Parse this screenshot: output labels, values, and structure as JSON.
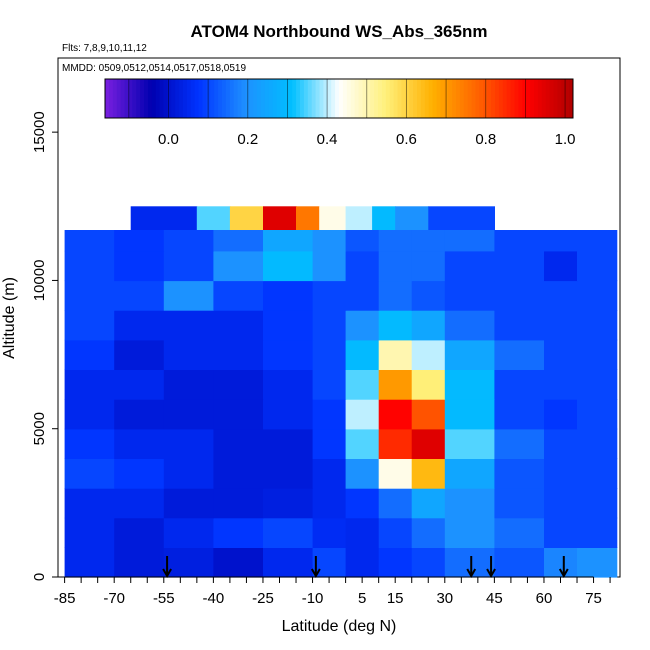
{
  "chart_data": {
    "type": "heatmap",
    "title": "ATOM4 Northbound WS_Abs_365nm",
    "flights_note": "Flts: 7,8,9,10,11,12",
    "dates_note": "MMDD: 0509,0512,0514,0517,0518,0519",
    "xlabel": "Latitude (deg N)",
    "ylabel": "Altitude (m)",
    "xlim": [
      -87,
      83
    ],
    "ylim": [
      0,
      17500
    ],
    "x_ticks": [
      -85,
      -70,
      -55,
      -40,
      -25,
      -10,
      5,
      15,
      30,
      45,
      60,
      75
    ],
    "x_ticks_labels": [
      "-85",
      "-70",
      "-55",
      "-40",
      "-25",
      "-10",
      "5",
      "15",
      "30",
      "45",
      "60",
      "75"
    ],
    "y_ticks": [
      0,
      5000,
      10000,
      15000
    ],
    "y_ticks_labels": [
      "0",
      "5000",
      "10000",
      "15000"
    ],
    "colorbar": {
      "range": [
        -0.16,
        1.02
      ],
      "ticks": [
        0.0,
        0.2,
        0.4,
        0.6,
        0.8,
        1.0
      ],
      "ticks_labels": [
        "0.0",
        "0.2",
        "0.4",
        "0.6",
        "0.8",
        "1.0"
      ],
      "colors": [
        "#7a1fe0",
        "#0000b0",
        "#0033ff",
        "#1e90ff",
        "#00bfff",
        "#ffffff",
        "#fff07a",
        "#ffb000",
        "#ff6000",
        "#ff0000",
        "#b00000"
      ]
    },
    "profile_markers_lat": [
      -54,
      -9,
      38,
      44,
      66
    ],
    "column_lat_edges": [
      -85,
      -70,
      -55,
      -40,
      -25,
      -10,
      0,
      10,
      20,
      30,
      45,
      60,
      70,
      82
    ],
    "level_alt_edges": [
      0,
      1000,
      2000,
      3000,
      4000,
      5000,
      6000,
      7000,
      8000,
      9000,
      10000,
      11000,
      11700,
      12500
    ],
    "cells": [
      [
        0.05,
        0.02,
        0.03,
        0.0,
        0.05,
        0.1,
        0.05,
        0.08,
        0.1,
        0.15,
        0.12,
        0.18,
        0.2
      ],
      [
        0.05,
        0.02,
        0.05,
        0.08,
        0.1,
        0.06,
        0.05,
        0.1,
        0.15,
        0.2,
        0.15,
        0.1,
        0.1
      ],
      [
        0.05,
        0.05,
        0.02,
        0.02,
        0.03,
        0.05,
        0.08,
        0.15,
        0.25,
        0.2,
        0.12,
        0.1,
        0.1
      ],
      [
        0.1,
        0.08,
        0.05,
        0.02,
        0.02,
        0.05,
        0.2,
        0.45,
        0.65,
        0.25,
        0.12,
        0.1,
        0.1
      ],
      [
        0.08,
        0.05,
        0.05,
        0.02,
        0.02,
        0.08,
        0.35,
        0.85,
        0.95,
        0.35,
        0.15,
        0.1,
        0.1
      ],
      [
        0.05,
        0.02,
        0.02,
        0.02,
        0.05,
        0.08,
        0.4,
        0.9,
        0.8,
        0.3,
        0.1,
        0.08,
        0.1
      ],
      [
        0.05,
        0.05,
        0.02,
        0.02,
        0.05,
        0.1,
        0.35,
        0.7,
        0.55,
        0.3,
        0.1,
        0.1,
        0.1
      ],
      [
        0.08,
        0.02,
        0.05,
        0.05,
        0.08,
        0.1,
        0.3,
        0.5,
        0.4,
        0.25,
        0.15,
        0.1,
        0.1
      ],
      [
        0.1,
        0.05,
        0.05,
        0.05,
        0.08,
        0.1,
        0.2,
        0.3,
        0.25,
        0.15,
        0.1,
        0.1,
        0.1
      ],
      [
        0.1,
        0.1,
        0.2,
        0.1,
        0.08,
        0.1,
        0.1,
        0.15,
        0.12,
        0.1,
        0.1,
        0.1,
        0.1
      ],
      [
        0.1,
        0.08,
        0.1,
        0.2,
        0.3,
        0.2,
        0.1,
        0.15,
        0.15,
        0.1,
        0.1,
        0.05,
        0.1
      ],
      [
        0.1,
        0.08,
        0.1,
        0.15,
        0.25,
        0.2,
        0.12,
        0.15,
        0.15,
        0.15,
        0.1,
        0.1,
        0.1
      ]
    ],
    "upper_layer": {
      "alt_range": [
        11700,
        12500
      ],
      "lat_knots": [
        -65,
        -45,
        -35,
        -25,
        -15,
        -8,
        0,
        8,
        15,
        25,
        45
      ],
      "values": [
        0.05,
        0.35,
        0.6,
        0.95,
        0.75,
        0.45,
        0.4,
        0.3,
        0.2,
        0.1,
        0.05
      ]
    },
    "grid": false
  }
}
